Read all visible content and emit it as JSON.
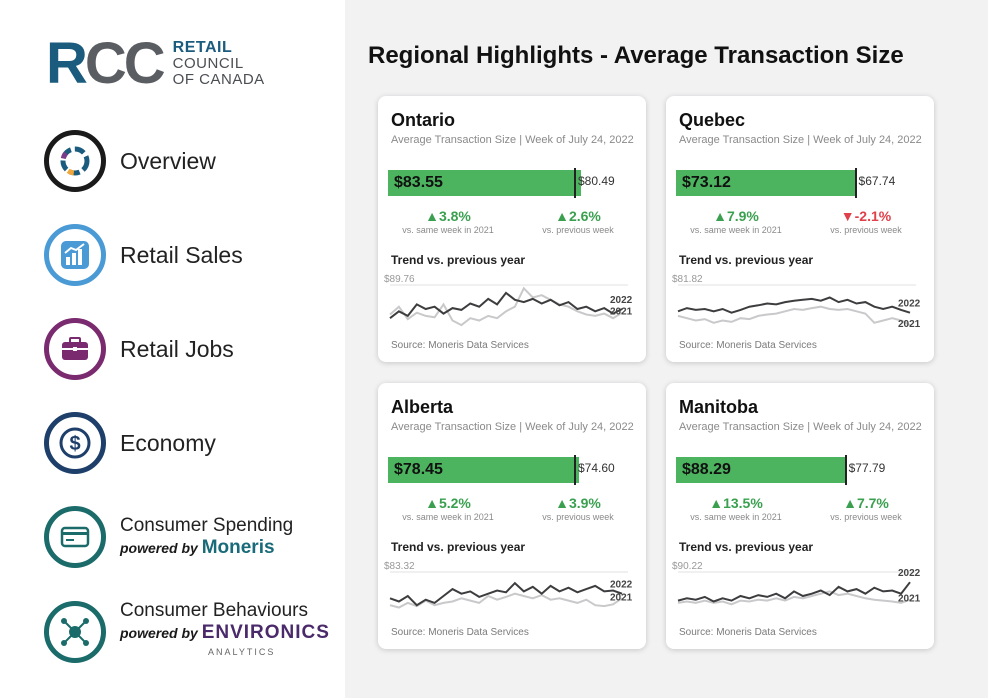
{
  "logo": {
    "rcc_r": "R",
    "rcc_cc": "CC",
    "line1": "RETAIL",
    "line2": "COUNCIL",
    "line3": "OF CANADA"
  },
  "nav": {
    "overview": "Overview",
    "retail_sales": "Retail Sales",
    "retail_jobs": "Retail Jobs",
    "economy": "Economy",
    "consumer_spending": "Consumer Spending",
    "consumer_spending_powered": "powered by",
    "consumer_spending_brand": "Moneris",
    "consumer_behaviours": "Consumer Behaviours",
    "consumer_behaviours_powered": "powered by",
    "consumer_behaviours_brand": "ENVIRONICS",
    "consumer_behaviours_brand_sub": "ANALYTICS"
  },
  "page_title": "Regional Highlights - Average Transaction Size",
  "colors": {
    "bar_green": "#4cb35e",
    "up_green": "#3aa04f",
    "down_red": "#e0404a",
    "line_2022": "#3d3d3f",
    "line_2021": "#c9c9cb"
  },
  "cards": [
    {
      "region": "Ontario",
      "subtitle": "Average Transaction Size | Week of July 24, 2022",
      "value": "$83.55",
      "prev_value": "$80.49",
      "bar_fraction": 0.78,
      "marker_fraction": 0.75,
      "stat1_val": "▲3.8%",
      "stat1_dir": "up",
      "stat1_lbl": "vs. same week in 2021",
      "stat2_val": "▲2.6%",
      "stat2_dir": "up",
      "stat2_lbl": "vs. previous week",
      "trend_title": "Trend vs. previous year",
      "trend_max": "$89.76",
      "legend_2022": "2022",
      "legend_2021": "2021",
      "source": "Source: Moneris Data Services",
      "series_2022": [
        0.3,
        0.45,
        0.35,
        0.6,
        0.5,
        0.55,
        0.4,
        0.52,
        0.48,
        0.62,
        0.55,
        0.72,
        0.6,
        0.85,
        0.7,
        0.65,
        0.72,
        0.62,
        0.7,
        0.58,
        0.65,
        0.5,
        0.55,
        0.45,
        0.52,
        0.4,
        0.5
      ],
      "series_2021": [
        0.38,
        0.55,
        0.28,
        0.42,
        0.35,
        0.32,
        0.6,
        0.25,
        0.15,
        0.3,
        0.25,
        0.35,
        0.3,
        0.45,
        0.55,
        0.95,
        0.75,
        0.8,
        0.7,
        0.6,
        0.55,
        0.45,
        0.38,
        0.35,
        0.4,
        0.3,
        0.42
      ]
    },
    {
      "region": "Quebec",
      "subtitle": "Average Transaction Size | Week of July 24, 2022",
      "value": "$73.12",
      "prev_value": "$67.74",
      "bar_fraction": 0.73,
      "marker_fraction": 0.72,
      "stat1_val": "▲7.9%",
      "stat1_dir": "up",
      "stat1_lbl": "vs. same week in 2021",
      "stat2_val": "▼-2.1%",
      "stat2_dir": "down",
      "stat2_lbl": "vs. previous week",
      "trend_title": "Trend vs. previous year",
      "trend_max": "$81.82",
      "legend_2022": "2022",
      "legend_2021": "2021",
      "source": "Source: Moneris Data Services",
      "series_2022": [
        0.45,
        0.52,
        0.48,
        0.5,
        0.45,
        0.5,
        0.42,
        0.48,
        0.55,
        0.58,
        0.62,
        0.6,
        0.65,
        0.68,
        0.7,
        0.72,
        0.68,
        0.75,
        0.65,
        0.7,
        0.62,
        0.65,
        0.55,
        0.5,
        0.55,
        0.48,
        0.42
      ],
      "series_2021": [
        0.35,
        0.3,
        0.25,
        0.28,
        0.2,
        0.25,
        0.22,
        0.3,
        0.28,
        0.35,
        0.38,
        0.4,
        0.45,
        0.5,
        0.48,
        0.52,
        0.55,
        0.5,
        0.48,
        0.5,
        0.45,
        0.4,
        0.2,
        0.25,
        0.3,
        0.25,
        0.15
      ]
    },
    {
      "region": "Alberta",
      "subtitle": "Average Transaction Size | Week of July 24, 2022",
      "value": "$78.45",
      "prev_value": "$74.60",
      "bar_fraction": 0.77,
      "marker_fraction": 0.75,
      "stat1_val": "▲5.2%",
      "stat1_dir": "up",
      "stat1_lbl": "vs. same week in 2021",
      "stat2_val": "▲3.9%",
      "stat2_dir": "up",
      "stat2_lbl": "vs. previous week",
      "trend_title": "Trend vs. previous year",
      "trend_max": "$83.32",
      "legend_2022": "2022",
      "legend_2021": "2021",
      "source": "Source: Moneris Data Services",
      "series_2022": [
        0.45,
        0.38,
        0.5,
        0.3,
        0.42,
        0.35,
        0.5,
        0.65,
        0.55,
        0.6,
        0.48,
        0.55,
        0.62,
        0.58,
        0.78,
        0.6,
        0.7,
        0.55,
        0.72,
        0.6,
        0.68,
        0.58,
        0.65,
        0.72,
        0.6,
        0.62,
        0.55
      ],
      "series_2021": [
        0.3,
        0.25,
        0.35,
        0.28,
        0.4,
        0.3,
        0.35,
        0.38,
        0.45,
        0.4,
        0.35,
        0.5,
        0.42,
        0.48,
        0.55,
        0.5,
        0.45,
        0.52,
        0.42,
        0.45,
        0.4,
        0.35,
        0.42,
        0.3,
        0.28,
        0.32,
        0.45
      ]
    },
    {
      "region": "Manitoba",
      "subtitle": "Average Transaction Size | Week of July 24, 2022",
      "value": "$88.29",
      "prev_value": "$77.79",
      "bar_fraction": 0.68,
      "marker_fraction": 0.68,
      "stat1_val": "▲13.5%",
      "stat1_dir": "up",
      "stat1_lbl": "vs. same week in 2021",
      "stat2_val": "▲7.7%",
      "stat2_dir": "up",
      "stat2_lbl": "vs. previous week",
      "trend_title": "Trend vs. previous year",
      "trend_max": "$90.22",
      "legend_2022": "2022",
      "legend_2021": "2021",
      "source": "Source: Moneris Data Services",
      "series_2022": [
        0.4,
        0.45,
        0.42,
        0.48,
        0.38,
        0.45,
        0.4,
        0.5,
        0.45,
        0.52,
        0.48,
        0.55,
        0.45,
        0.6,
        0.5,
        0.55,
        0.62,
        0.52,
        0.7,
        0.6,
        0.65,
        0.55,
        0.68,
        0.6,
        0.62,
        0.55,
        0.8
      ],
      "series_2021": [
        0.35,
        0.38,
        0.35,
        0.4,
        0.35,
        0.38,
        0.32,
        0.4,
        0.38,
        0.42,
        0.4,
        0.45,
        0.4,
        0.48,
        0.45,
        0.5,
        0.55,
        0.6,
        0.52,
        0.55,
        0.5,
        0.45,
        0.42,
        0.4,
        0.38,
        0.35,
        0.42
      ]
    }
  ]
}
